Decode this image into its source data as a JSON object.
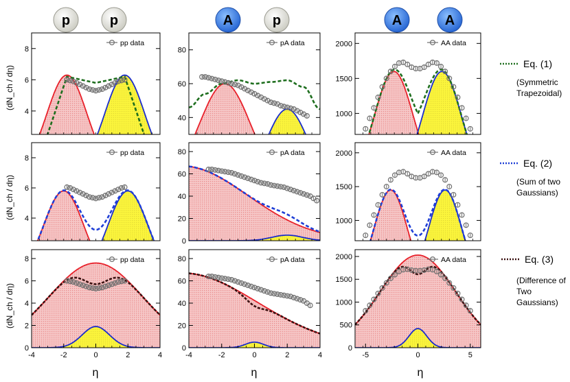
{
  "colors": {
    "left_source": "#e8202a",
    "right_source": "#1a2ccc",
    "red_fill": "#f3b8b8",
    "yellow_fill": "#fbf53c",
    "data_marker": "#6e6e6e",
    "eq1_curve": "#1e6e1e",
    "eq2_curve": "#1f3fd6",
    "eq3_curve": "#3a1010",
    "nucleus_p": "#f4f4ee",
    "nucleus_A": "#3b82f0"
  },
  "header": {
    "columns": [
      {
        "left": "p",
        "right": "p"
      },
      {
        "left": "A",
        "right": "p"
      },
      {
        "left": "A",
        "right": "A"
      }
    ]
  },
  "y_axis_label": "(dN_ch / dη)",
  "x_axis_label": "η",
  "legend": {
    "eq1": {
      "title": "Eq. (1)",
      "desc": [
        "(Symmetric",
        "Trapezoidal)"
      ]
    },
    "eq2": {
      "title": "Eq. (2)",
      "desc": [
        "(Sum of two",
        "Gaussians)"
      ]
    },
    "eq3": {
      "title": "Eq. (3)",
      "desc": [
        "(Difference of",
        "Two",
        "Gaussians)"
      ]
    }
  },
  "chart_data": [
    {
      "id": "r0c0",
      "type": "line",
      "model": "eq1",
      "legend": "pp data",
      "xlim": [
        -4,
        4
      ],
      "ylim": [
        2.5,
        9
      ],
      "yticks": [
        4,
        6,
        8
      ],
      "xticks": [],
      "data_points": {
        "x": [
          -1.8,
          -1.6,
          -1.4,
          -1.2,
          -1.0,
          -0.8,
          -0.6,
          -0.4,
          -0.2,
          0,
          0.2,
          0.4,
          0.6,
          0.8,
          1.0,
          1.2,
          1.4,
          1.6,
          1.8
        ],
        "y": [
          6.0,
          5.95,
          5.9,
          5.8,
          5.7,
          5.6,
          5.5,
          5.4,
          5.35,
          5.3,
          5.35,
          5.4,
          5.5,
          5.6,
          5.7,
          5.8,
          5.9,
          5.95,
          6.0
        ]
      },
      "left": {
        "type": "gauss",
        "amp": 6.3,
        "mu": -1.8,
        "sigma": 1.25,
        "hide_from": 0.5
      },
      "right": {
        "type": "gauss",
        "amp": 6.3,
        "mu": 1.8,
        "sigma": 1.25,
        "hide_to": -0.5
      },
      "total": {
        "type": "trap",
        "plateau": 6.2,
        "half": 1.8,
        "edge": 3.2,
        "dip": 0.4
      }
    },
    {
      "id": "r0c1",
      "type": "line",
      "model": "eq1",
      "legend": "pA data",
      "xlim": [
        -4,
        4
      ],
      "ylim": [
        30,
        90
      ],
      "yticks": [
        40,
        60,
        80
      ],
      "xticks": [],
      "data_points": {
        "x": [
          -3.2,
          -3.0,
          -2.8,
          -2.6,
          -2.4,
          -2.2,
          -2.0,
          -1.8,
          -1.6,
          -1.4,
          -1.2,
          -1.0,
          -0.8,
          -0.6,
          -0.4,
          -0.2,
          0,
          0.2,
          0.4,
          0.6,
          0.8,
          1.0,
          1.2,
          1.4,
          1.6,
          1.8,
          2.0,
          2.2,
          2.4,
          2.6,
          2.8,
          3.0,
          3.2
        ],
        "y": [
          64,
          64,
          63.5,
          63,
          62.5,
          62,
          61.5,
          61,
          60.5,
          60,
          59.5,
          59,
          58,
          57,
          56,
          55,
          54,
          53,
          52,
          51,
          50,
          49,
          48.5,
          48,
          47,
          46.5,
          46,
          45.5,
          45,
          44,
          43,
          42,
          41
        ]
      },
      "left": {
        "type": "gauss",
        "amp": 60,
        "mu": -1.8,
        "sigma": 1.55,
        "hide_from": 1.5
      },
      "right": {
        "type": "gauss",
        "amp": 45,
        "mu": 2.0,
        "sigma": 1.25,
        "hide_to": 0.2
      },
      "total": {
        "type": "wave",
        "pts": [
          [
            -4,
            46
          ],
          [
            -3,
            54
          ],
          [
            -2,
            60
          ],
          [
            -1,
            62
          ],
          [
            0,
            60
          ],
          [
            1,
            61
          ],
          [
            2,
            62
          ],
          [
            3,
            58
          ],
          [
            4,
            45
          ]
        ]
      }
    },
    {
      "id": "r0c2",
      "type": "line",
      "model": "eq1",
      "legend": "AA data",
      "xlim": [
        -6,
        6
      ],
      "ylim": [
        700,
        2150
      ],
      "yticks": [
        1000,
        1500,
        2000
      ],
      "xticks": [],
      "data_points": {
        "x": [
          -5,
          -4.6,
          -4.2,
          -3.8,
          -3.4,
          -3.0,
          -2.6,
          -2.2,
          -1.8,
          -1.4,
          -1.0,
          -0.6,
          -0.2,
          0.2,
          0.6,
          1.0,
          1.4,
          1.8,
          2.2,
          2.6,
          3.0,
          3.4,
          3.8,
          4.2,
          4.6,
          5.0
        ],
        "y": [
          780,
          930,
          1080,
          1230,
          1380,
          1500,
          1600,
          1670,
          1720,
          1730,
          1700,
          1660,
          1640,
          1640,
          1660,
          1700,
          1730,
          1720,
          1670,
          1600,
          1500,
          1380,
          1230,
          1080,
          930,
          780
        ]
      },
      "left": {
        "type": "gauss",
        "amp": 1600,
        "mu": -2.3,
        "sigma": 1.85,
        "hide_from": 1.5
      },
      "right": {
        "type": "gauss",
        "amp": 1600,
        "mu": 2.3,
        "sigma": 1.85,
        "hide_to": -1.5
      },
      "total": {
        "type": "follow"
      }
    },
    {
      "id": "r1c0",
      "type": "line",
      "model": "eq2",
      "legend": "pp data",
      "xlim": [
        -4,
        4
      ],
      "ylim": [
        2.5,
        9
      ],
      "yticks": [
        4,
        6,
        8
      ],
      "xticks": [],
      "data_points": {
        "x": [
          -1.8,
          -1.6,
          -1.4,
          -1.2,
          -1.0,
          -0.8,
          -0.6,
          -0.4,
          -0.2,
          0,
          0.2,
          0.4,
          0.6,
          0.8,
          1.0,
          1.2,
          1.4,
          1.6,
          1.8
        ],
        "y": [
          6.05,
          6.0,
          5.9,
          5.8,
          5.7,
          5.6,
          5.5,
          5.4,
          5.35,
          5.3,
          5.35,
          5.4,
          5.5,
          5.6,
          5.7,
          5.8,
          5.9,
          6.0,
          6.05
        ]
      },
      "left": {
        "type": "gauss",
        "amp": 5.8,
        "mu": -2.0,
        "sigma": 1.25
      },
      "right": {
        "type": "gauss",
        "amp": 5.8,
        "mu": 2.0,
        "sigma": 1.25
      },
      "total": {
        "type": "sum"
      }
    },
    {
      "id": "r1c1",
      "type": "line",
      "model": "eq2",
      "legend": "pA data",
      "xlim": [
        -4,
        4
      ],
      "ylim": [
        0,
        88
      ],
      "yticks": [
        0,
        20,
        40,
        60,
        80
      ],
      "xticks": [],
      "data_points": {
        "x": [
          -2.8,
          -2.6,
          -2.4,
          -2.2,
          -2.0,
          -1.8,
          -1.6,
          -1.4,
          -1.2,
          -1.0,
          -0.8,
          -0.6,
          -0.4,
          -0.2,
          0,
          0.2,
          0.4,
          0.6,
          0.8,
          1.0,
          1.2,
          1.4,
          1.6,
          1.8,
          2.0,
          2.2,
          2.4,
          2.6,
          2.8,
          3.0,
          3.2,
          3.4,
          3.6,
          3.8
        ],
        "y": [
          64,
          64,
          63.5,
          63,
          62.5,
          62,
          61.5,
          61,
          60,
          59,
          58,
          57,
          56,
          55,
          54,
          53,
          52,
          51.5,
          51,
          50,
          49.5,
          49,
          48.5,
          48,
          47,
          46,
          45,
          44,
          43,
          42,
          41,
          40,
          38,
          36
        ]
      },
      "left": {
        "type": "gauss",
        "amp": 67,
        "mu": -4.4,
        "sigma": 4.0
      },
      "right": {
        "type": "gauss",
        "amp": 5,
        "mu": 2.0,
        "sigma": 0.95
      },
      "total": {
        "type": "sum"
      }
    },
    {
      "id": "r1c2",
      "type": "line",
      "model": "eq2",
      "legend": "AA data",
      "xlim": [
        -6,
        6
      ],
      "ylim": [
        700,
        2150
      ],
      "yticks": [
        1000,
        1500,
        2000
      ],
      "xticks": [],
      "data_points": {
        "x": [
          -5,
          -4.6,
          -4.2,
          -3.8,
          -3.4,
          -3.0,
          -2.6,
          -2.2,
          -1.8,
          -1.4,
          -1.0,
          -0.6,
          -0.2,
          0.2,
          0.6,
          1.0,
          1.4,
          1.8,
          2.2,
          2.6,
          3.0,
          3.4,
          3.8,
          4.2,
          4.6,
          5.0
        ],
        "y": [
          780,
          930,
          1080,
          1230,
          1380,
          1500,
          1600,
          1670,
          1710,
          1720,
          1690,
          1650,
          1630,
          1630,
          1650,
          1690,
          1720,
          1710,
          1670,
          1600,
          1500,
          1380,
          1230,
          1080,
          930,
          780
        ]
      },
      "left": {
        "type": "gauss",
        "amp": 1450,
        "mu": -2.6,
        "sigma": 1.6
      },
      "right": {
        "type": "gauss",
        "amp": 1450,
        "mu": 2.6,
        "sigma": 1.6
      },
      "total": {
        "type": "sum"
      }
    },
    {
      "id": "r2c0",
      "type": "line",
      "model": "eq3",
      "legend": "pp data",
      "xlim": [
        -4,
        4
      ],
      "ylim": [
        0,
        8.8
      ],
      "yticks": [
        0,
        2,
        4,
        6,
        8
      ],
      "xticks": [
        -4,
        -2,
        0,
        2,
        4
      ],
      "data_points": {
        "x": [
          -1.8,
          -1.6,
          -1.4,
          -1.2,
          -1.0,
          -0.8,
          -0.6,
          -0.4,
          -0.2,
          0,
          0.2,
          0.4,
          0.6,
          0.8,
          1.0,
          1.2,
          1.4,
          1.6,
          1.8
        ],
        "y": [
          6.0,
          5.95,
          5.9,
          5.8,
          5.7,
          5.6,
          5.5,
          5.4,
          5.35,
          5.3,
          5.35,
          5.4,
          5.5,
          5.6,
          5.7,
          5.8,
          5.9,
          5.95,
          6.0
        ]
      },
      "left": {
        "type": "gauss",
        "amp": 7.6,
        "mu": 0,
        "sigma": 2.9
      },
      "right": {
        "type": "gauss",
        "amp": 1.9,
        "mu": 0,
        "sigma": 0.85
      },
      "total": {
        "type": "diff"
      }
    },
    {
      "id": "r2c1",
      "type": "line",
      "model": "eq3",
      "legend": "pA data",
      "xlim": [
        -4,
        4
      ],
      "ylim": [
        0,
        88
      ],
      "yticks": [
        0,
        20,
        40,
        60,
        80
      ],
      "xticks": [
        -4,
        -2,
        0,
        2,
        4
      ],
      "data_points": {
        "x": [
          -2.8,
          -2.6,
          -2.4,
          -2.2,
          -2.0,
          -1.8,
          -1.6,
          -1.4,
          -1.2,
          -1.0,
          -0.8,
          -0.6,
          -0.4,
          -0.2,
          0,
          0.2,
          0.4,
          0.6,
          0.8,
          1.0,
          1.2,
          1.4,
          1.6,
          1.8,
          2.0,
          2.2,
          2.4,
          2.6,
          2.8,
          3.0,
          3.2,
          3.4
        ],
        "y": [
          64,
          64,
          63.5,
          63,
          62.5,
          62,
          61.5,
          61,
          60,
          59,
          58,
          57,
          56,
          55,
          54,
          53,
          52,
          51,
          50,
          49,
          48.5,
          48,
          47.5,
          47,
          46.5,
          46,
          45,
          44,
          43,
          42,
          40,
          38
        ]
      },
      "left": {
        "type": "gauss",
        "amp": 67,
        "mu": -4.4,
        "sigma": 4.6
      },
      "right": {
        "type": "gauss",
        "amp": 5,
        "mu": 0,
        "sigma": 0.55
      },
      "total": {
        "type": "diff"
      }
    },
    {
      "id": "r2c2",
      "type": "line",
      "model": "eq3",
      "legend": "AA data",
      "xlim": [
        -6,
        6
      ],
      "ylim": [
        0,
        2150
      ],
      "yticks": [
        0,
        500,
        1000,
        1500,
        2000
      ],
      "xticks": [
        -5,
        0,
        5
      ],
      "data_points": {
        "x": [
          -5.0,
          -4.6,
          -4.2,
          -3.8,
          -3.4,
          -3.0,
          -2.6,
          -2.2,
          -1.8,
          -1.4,
          -1.0,
          -0.6,
          -0.2,
          0.2,
          0.6,
          1.0,
          1.4,
          1.8,
          2.2,
          2.6,
          3.0,
          3.4,
          3.8,
          4.2,
          4.6,
          5.0
        ],
        "y": [
          810,
          930,
          1060,
          1190,
          1310,
          1420,
          1520,
          1600,
          1670,
          1710,
          1720,
          1700,
          1690,
          1690,
          1700,
          1720,
          1710,
          1670,
          1600,
          1520,
          1420,
          1310,
          1190,
          1060,
          930,
          810
        ]
      },
      "left": {
        "type": "gauss",
        "amp": 2030,
        "mu": 0,
        "sigma": 3.6
      },
      "right": {
        "type": "gauss",
        "amp": 420,
        "mu": 0,
        "sigma": 0.85
      },
      "total": {
        "type": "diff"
      }
    }
  ]
}
